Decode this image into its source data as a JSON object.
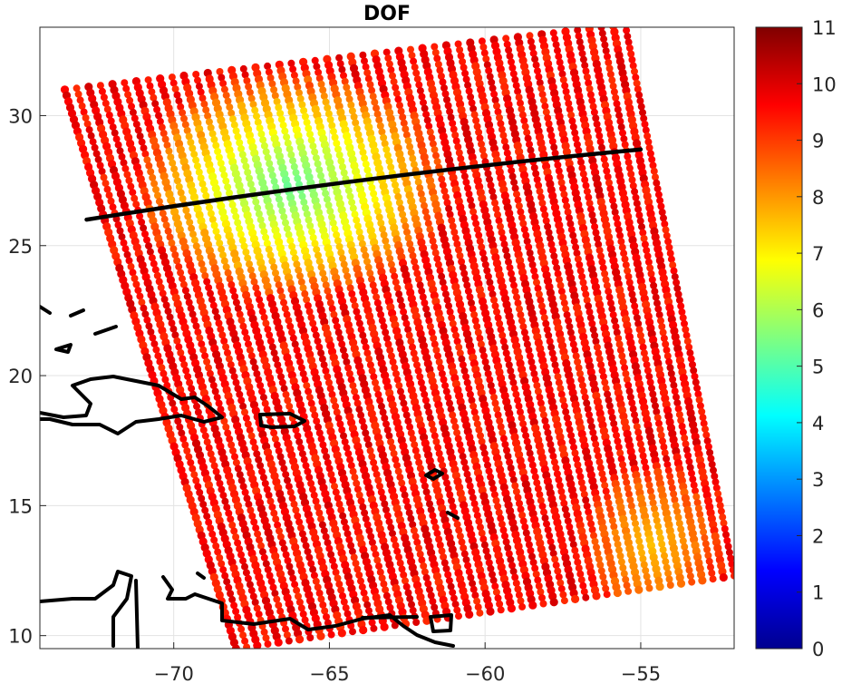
{
  "chart_data": {
    "type": "heatmap",
    "title": "DOF",
    "xlabel": "",
    "ylabel": "",
    "xlim": [
      -74.3,
      -52
    ],
    "ylim": [
      9.5,
      33.4
    ],
    "xticks": [
      -70,
      -65,
      -60,
      -55
    ],
    "xtick_labels": [
      "-70",
      "-65",
      "-60",
      "-55"
    ],
    "yticks": [
      10,
      15,
      20,
      25,
      30
    ],
    "ytick_labels": [
      "10",
      "15",
      "20",
      "25",
      "30"
    ],
    "grid": true,
    "colormap": "jet",
    "colorbar": {
      "range": [
        0,
        11
      ],
      "ticks": [
        0,
        1,
        2,
        3,
        4,
        5,
        6,
        7,
        8,
        9,
        10,
        11
      ],
      "tick_labels": [
        "0",
        "1",
        "2",
        "3",
        "4",
        "5",
        "6",
        "7",
        "8",
        "9",
        "10",
        "11"
      ]
    },
    "swath_corners": {
      "top_left": [
        -73.5,
        31.0
      ],
      "top_right": [
        -55.5,
        33.5
      ],
      "bottom_right": [
        -52.0,
        12.3
      ],
      "bottom_left": [
        -68.0,
        9.5
      ]
    },
    "background_value": 9.6,
    "features": [
      {
        "kind": "low_dof_region",
        "center": [
          -66.2,
          27.3
        ],
        "radius_x": 3.2,
        "radius_y": 2.8,
        "min_value": 5.2
      },
      {
        "kind": "medium_dof_band",
        "center": [
          -54.6,
          13.5
        ],
        "radius_x": 1.5,
        "radius_y": 2.0,
        "min_value": 7.5
      }
    ],
    "transect_line": {
      "start": [
        -72.8,
        26.0
      ],
      "end": [
        -55.0,
        28.7
      ],
      "color": "#000000"
    },
    "coastlines_color": "#000000"
  }
}
